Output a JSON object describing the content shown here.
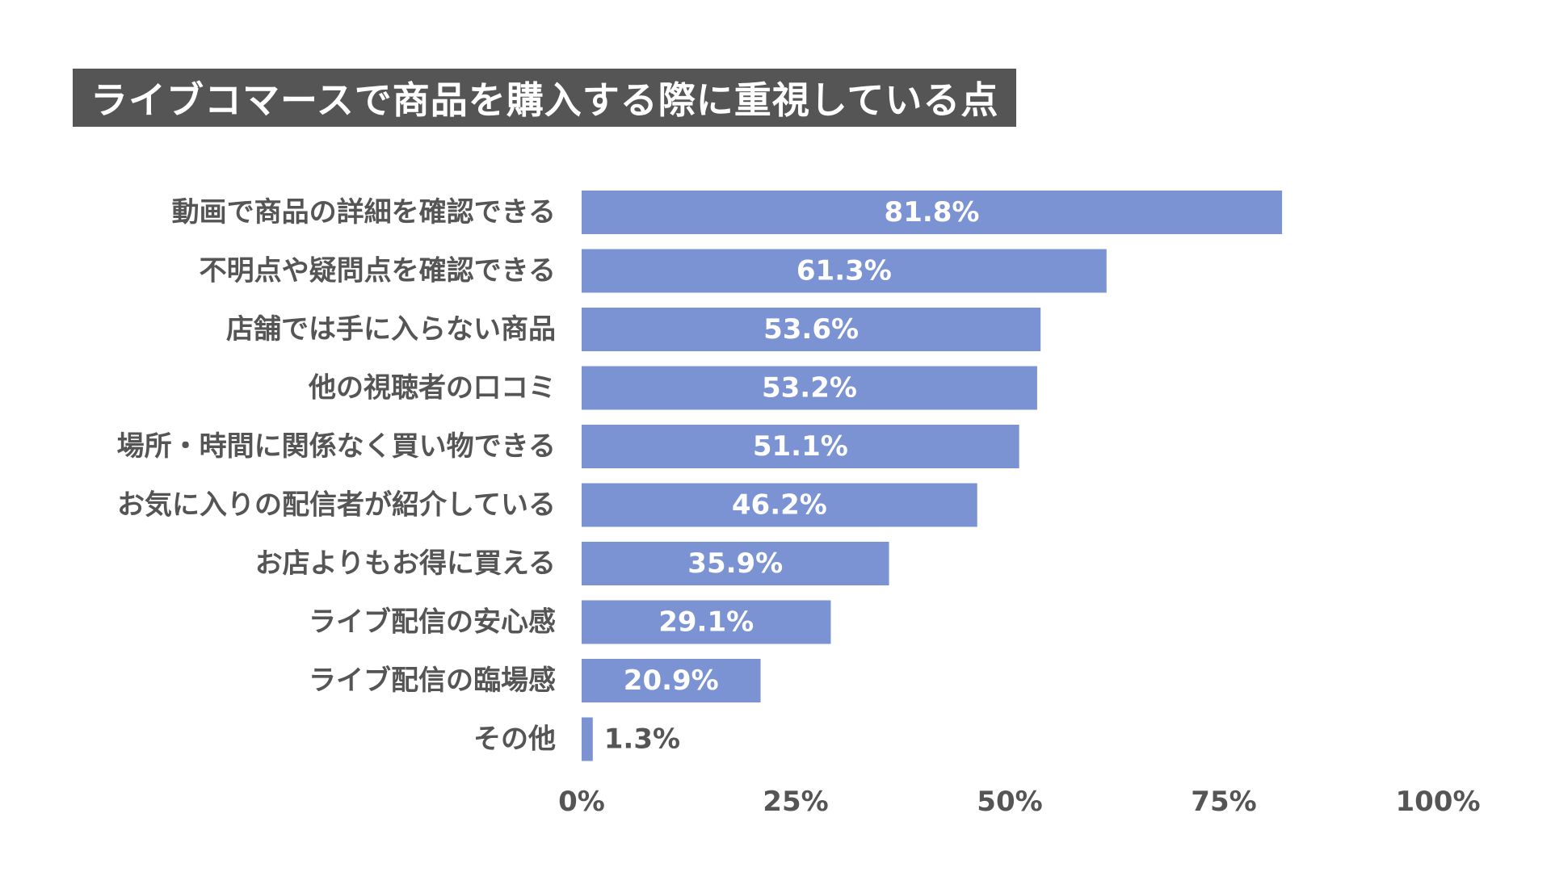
{
  "chart_data": {
    "type": "bar",
    "orientation": "horizontal",
    "title": "ライブコマースで商品を購入する際に重視している点",
    "categories": [
      "動画で商品の詳細を確認できる",
      "不明点や疑問点を確認できる",
      "店舗では手に入らない商品",
      "他の視聴者の口コミ",
      "場所・時間に関係なく買い物できる",
      "お気に入りの配信者が紹介している",
      "お店よりもお得に買える",
      "ライブ配信の安心感",
      "ライブ配信の臨場感",
      "その他"
    ],
    "values": [
      81.8,
      61.3,
      53.6,
      53.2,
      51.1,
      46.2,
      35.9,
      29.1,
      20.9,
      1.3
    ],
    "value_labels": [
      "81.8%",
      "61.3%",
      "53.6%",
      "53.2%",
      "51.1%",
      "46.2%",
      "35.9%",
      "29.1%",
      "20.9%",
      "1.3%"
    ],
    "xlim": [
      0,
      100
    ],
    "x_ticks": [
      0,
      25,
      50,
      75,
      100
    ],
    "x_tick_labels": [
      "0%",
      "25%",
      "50%",
      "75%",
      "100%"
    ],
    "xlabel": "",
    "ylabel": "",
    "grid": false,
    "legend": "none",
    "colors": {
      "bar": "#7b93d3",
      "title_bg": "#555555",
      "title_text": "#ffffff",
      "label_text": "#555555",
      "value_inside": "#ffffff",
      "value_outside": "#555555"
    }
  }
}
